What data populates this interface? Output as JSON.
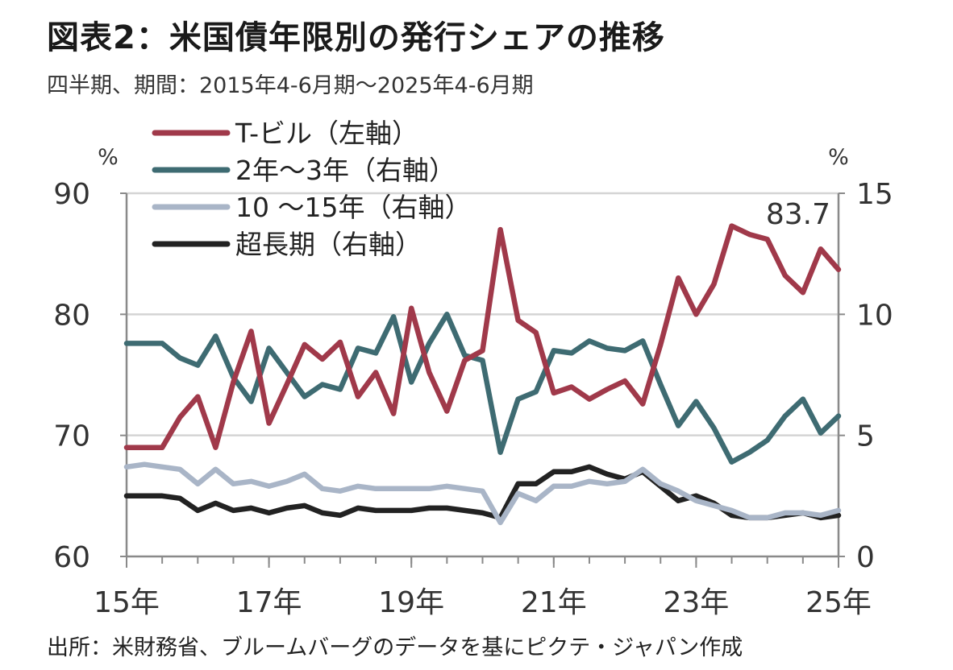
{
  "title": "図表2：米国債年限別の発行シェアの推移",
  "subtitle": "四半期、期間：2015年4-6月期～2025年4-6月期",
  "source": "出所：米財務省、ブルームバーグのデータを基にピクテ・ジャパン作成",
  "chart_data": {
    "type": "line",
    "left_axis": {
      "unit": "%",
      "ylim": [
        60,
        90
      ],
      "ticks": [
        "60",
        "70",
        "80",
        "90"
      ]
    },
    "right_axis": {
      "unit": "%",
      "ylim": [
        0,
        15
      ],
      "ticks": [
        "0",
        "5",
        "10",
        "15"
      ]
    },
    "x_ticks": [
      "15年",
      "17年",
      "19年",
      "21年",
      "23年",
      "25年"
    ],
    "x_tick_index": [
      0,
      8,
      16,
      24,
      32,
      40
    ],
    "grid": true,
    "legend_position": "top-left",
    "annotation": {
      "text": "83.7",
      "series": 0,
      "index": 40
    },
    "series": [
      {
        "name": "T-ビル（左軸）",
        "axis": "left",
        "color": "#a0394a",
        "values": [
          69,
          69,
          69,
          71.5,
          73.2,
          69,
          74.4,
          78.6,
          71,
          74.2,
          77.5,
          76.3,
          77.7,
          73.2,
          75.2,
          71.8,
          80.5,
          75.2,
          72,
          76.2,
          77,
          87,
          79.5,
          78.5,
          73.5,
          74,
          73,
          73.8,
          74.5,
          72.6,
          77.5,
          83,
          80,
          82.5,
          87.3,
          86.6,
          86.2,
          83.2,
          81.8,
          85.4,
          83.7
        ]
      },
      {
        "name": "2年～3年（右軸）",
        "axis": "right",
        "color": "#3e6b72",
        "values": [
          8.8,
          8.8,
          8.8,
          8.2,
          7.9,
          9.1,
          7.4,
          6.4,
          8.6,
          7.6,
          6.6,
          7.1,
          6.9,
          8.6,
          8.4,
          9.9,
          7.2,
          8.8,
          10,
          8.3,
          8.1,
          4.3,
          6.5,
          6.8,
          8.5,
          8.4,
          8.9,
          8.6,
          8.5,
          8.9,
          7.1,
          5.4,
          6.4,
          5.3,
          3.9,
          4.3,
          4.8,
          5.8,
          6.5,
          5.1,
          5.8
        ]
      },
      {
        "name": "10 ～15年（右軸）",
        "axis": "right",
        "color": "#a9b5c7",
        "values": [
          3.7,
          3.8,
          3.7,
          3.6,
          3.0,
          3.6,
          3.0,
          3.1,
          2.9,
          3.1,
          3.4,
          2.8,
          2.7,
          2.9,
          2.8,
          2.8,
          2.8,
          2.8,
          2.9,
          2.8,
          2.7,
          1.4,
          2.6,
          2.3,
          2.9,
          2.9,
          3.1,
          3.0,
          3.1,
          3.6,
          3.0,
          2.7,
          2.3,
          2.1,
          1.9,
          1.6,
          1.6,
          1.8,
          1.8,
          1.7,
          1.9
        ]
      },
      {
        "name": "超長期（右軸）",
        "axis": "right",
        "color": "#222222",
        "values": [
          2.5,
          2.5,
          2.5,
          2.4,
          1.9,
          2.2,
          1.9,
          2.0,
          1.8,
          2.0,
          2.1,
          1.8,
          1.7,
          2.0,
          1.9,
          1.9,
          1.9,
          2.0,
          2.0,
          1.9,
          1.8,
          1.6,
          3.0,
          3.0,
          3.5,
          3.5,
          3.7,
          3.4,
          3.2,
          3.5,
          2.9,
          2.3,
          2.5,
          2.2,
          1.7,
          1.6,
          1.6,
          1.7,
          1.8,
          1.6,
          1.7
        ]
      }
    ]
  }
}
